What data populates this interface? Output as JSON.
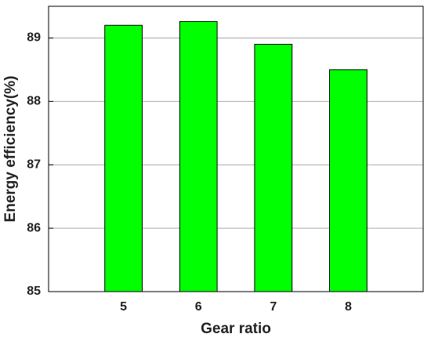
{
  "chart_data": {
    "type": "bar",
    "x": [
      5,
      6,
      7,
      8
    ],
    "values": [
      89.2,
      89.26,
      88.9,
      88.5
    ],
    "color": "#00ff00",
    "xlim": [
      4,
      9
    ],
    "xticks": [
      5,
      6,
      7,
      8
    ],
    "ylim": [
      85,
      89.5
    ],
    "yticks": [
      85,
      86,
      87,
      88,
      89
    ],
    "xlabel": "Gear ratio",
    "ylabel": "Energy efficiency(%)",
    "grid": true
  }
}
